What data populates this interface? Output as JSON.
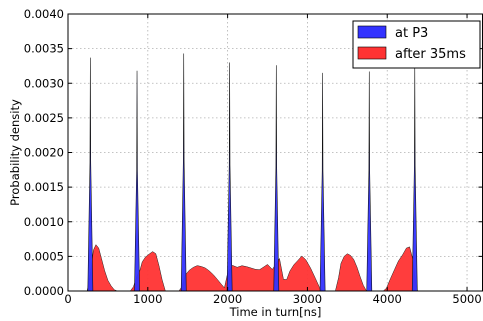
{
  "chart_data": {
    "type": "area",
    "title": "",
    "xlabel": "Time in turn[ns]",
    "ylabel": "Probability density",
    "xlim": [
      0,
      5200
    ],
    "ylim": [
      0,
      0.004
    ],
    "x_ticks": [
      0,
      1000,
      2000,
      3000,
      4000,
      5000
    ],
    "x_tick_labels": [
      "0",
      "1000",
      "2000",
      "3000",
      "4000",
      "5000"
    ],
    "y_ticks": [
      0,
      0.0005,
      0.001,
      0.0015,
      0.002,
      0.0025,
      0.003,
      0.0035,
      0.004
    ],
    "y_tick_labels": [
      "0.0000",
      "0.0005",
      "0.0010",
      "0.0015",
      "0.0020",
      "0.0025",
      "0.0030",
      "0.0035",
      "0.0040"
    ],
    "grid": true,
    "legend_position": "top-right",
    "series": [
      {
        "name": "at P3",
        "color": "#3333ff",
        "peaks": [
          {
            "center": 280,
            "height": 0.00337
          },
          {
            "center": 865,
            "height": 0.00318
          },
          {
            "center": 1450,
            "height": 0.00343
          },
          {
            "center": 2025,
            "height": 0.0033
          },
          {
            "center": 2610,
            "height": 0.00326
          },
          {
            "center": 3190,
            "height": 0.00315
          },
          {
            "center": 3775,
            "height": 0.00317
          },
          {
            "center": 4345,
            "height": 0.00328
          }
        ],
        "peak_half_width": 32
      },
      {
        "name": "after 35ms",
        "color": "#ff3333",
        "points": [
          [
            240,
            0
          ],
          [
            280,
            0.00025
          ],
          [
            320,
            0.00058
          ],
          [
            350,
            0.00065
          ],
          [
            385,
            0.0006
          ],
          [
            420,
            0.00045
          ],
          [
            460,
            0.00028
          ],
          [
            500,
            0.00015
          ],
          [
            540,
            8e-05
          ],
          [
            580,
            3e-05
          ],
          [
            620,
            0
          ],
          [
            780,
            0
          ],
          [
            820,
            8e-05
          ],
          [
            860,
            0.00022
          ],
          [
            900,
            0.0003
          ],
          [
            930,
            0.00042
          ],
          [
            970,
            0.00048
          ],
          [
            1020,
            0.00052
          ],
          [
            1060,
            0.00055
          ],
          [
            1100,
            0.00052
          ],
          [
            1140,
            0.00035
          ],
          [
            1180,
            0.00015
          ],
          [
            1220,
            0
          ],
          [
            1390,
            0
          ],
          [
            1430,
            8e-05
          ],
          [
            1470,
            0.00025
          ],
          [
            1520,
            0.00032
          ],
          [
            1570,
            0.00036
          ],
          [
            1620,
            0.00038
          ],
          [
            1670,
            0.00036
          ],
          [
            1720,
            0.00033
          ],
          [
            1770,
            0.00028
          ],
          [
            1820,
            0.00022
          ],
          [
            1870,
            0.00015
          ],
          [
            1920,
            8e-05
          ],
          [
            1960,
            3e-05
          ],
          [
            2000,
            0.00025
          ],
          [
            2060,
            0.00037
          ],
          [
            2120,
            0.00035
          ],
          [
            2180,
            0.00038
          ],
          [
            2240,
            0.00037
          ],
          [
            2300,
            0.00035
          ],
          [
            2350,
            0.00033
          ],
          [
            2400,
            0.00032
          ],
          [
            2450,
            0.00035
          ],
          [
            2500,
            0.00038
          ],
          [
            2560,
            0.0003
          ],
          [
            2610,
            0.00038
          ],
          [
            2650,
            0.00045
          ],
          [
            2700,
            0.00015
          ],
          [
            2740,
            0.00015
          ],
          [
            2780,
            0.00028
          ],
          [
            2830,
            0.00038
          ],
          [
            2880,
            0.00045
          ],
          [
            2930,
            0.00052
          ],
          [
            2980,
            0.00047
          ],
          [
            3040,
            0.00035
          ],
          [
            3100,
            0.0002
          ],
          [
            3160,
            4e-05
          ],
          [
            3200,
            0
          ],
          [
            3350,
            0
          ],
          [
            3390,
            0.00018
          ],
          [
            3420,
            0.00038
          ],
          [
            3460,
            0.00048
          ],
          [
            3500,
            0.00052
          ],
          [
            3540,
            0.0005
          ],
          [
            3580,
            0.00045
          ],
          [
            3620,
            0.00035
          ],
          [
            3660,
            0.00022
          ],
          [
            3700,
            0.0001
          ],
          [
            3740,
            2e-05
          ],
          [
            3770,
            0
          ],
          [
            3950,
            0
          ],
          [
            3990,
            5e-05
          ],
          [
            4040,
            0.00018
          ],
          [
            4090,
            0.0003
          ],
          [
            4140,
            0.00042
          ],
          [
            4190,
            0.0005
          ],
          [
            4240,
            0.0006
          ],
          [
            4280,
            0.00062
          ],
          [
            4320,
            0.00045
          ],
          [
            4360,
            0.0001
          ],
          [
            4380,
            0
          ]
        ]
      }
    ]
  }
}
